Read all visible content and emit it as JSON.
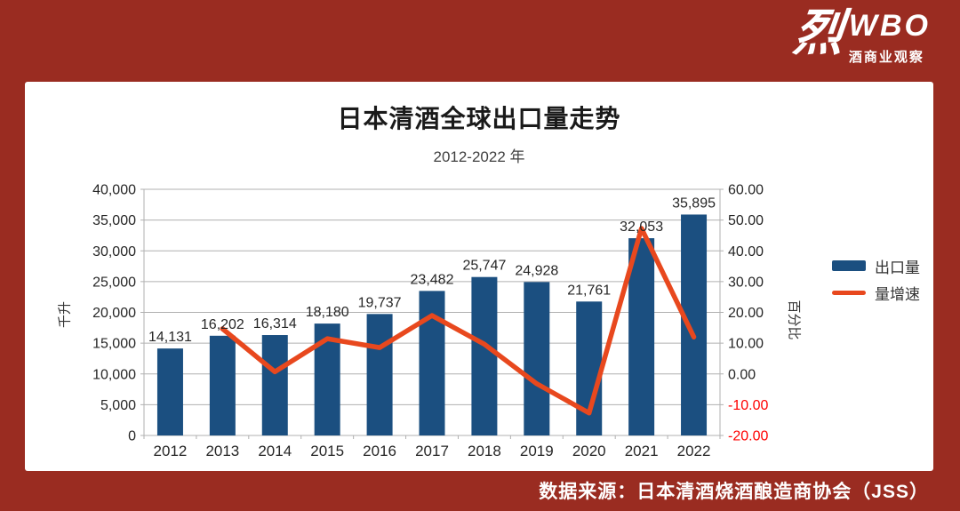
{
  "page": {
    "background_color": "#9A2C21",
    "card_color": "#FFFFFF"
  },
  "logo": {
    "glyph": "烈",
    "brand": "WBO",
    "tagline": "酒商业观察"
  },
  "footer": {
    "source_note": "数据来源：日本清酒烧酒酿造商协会（JSS）"
  },
  "chart_data": {
    "type": "combo",
    "title": "日本清酒全球出口量走势",
    "subtitle": "2012-2022 年",
    "categories": [
      "2012",
      "2013",
      "2014",
      "2015",
      "2016",
      "2017",
      "2018",
      "2019",
      "2020",
      "2021",
      "2022"
    ],
    "series": [
      {
        "name": "出口量",
        "type": "bar",
        "axis": "left",
        "color": "#1B4F80",
        "values": [
          14131,
          16202,
          16314,
          18180,
          19737,
          23482,
          25747,
          24928,
          21761,
          32053,
          35895
        ],
        "labels": [
          "14,131",
          "16,202",
          "16,314",
          "18,180",
          "19,737",
          "23,482",
          "25,747",
          "24,928",
          "21,761",
          "32,053",
          "35,895"
        ]
      },
      {
        "name": "量增速",
        "type": "line",
        "axis": "right",
        "color": "#E8481E",
        "values": [
          null,
          14.66,
          0.69,
          11.44,
          8.56,
          18.97,
          9.65,
          -3.18,
          -12.7,
          47.3,
          11.99
        ]
      }
    ],
    "left_axis": {
      "title": "千升",
      "min": 0,
      "max": 40000,
      "step": 5000,
      "ticks": [
        "40,000",
        "35,000",
        "30,000",
        "25,000",
        "20,000",
        "15,000",
        "10,000",
        "5,000",
        "0"
      ]
    },
    "right_axis": {
      "title": "百分比",
      "min": -20,
      "max": 60,
      "step": 10,
      "ticks": [
        "60.00",
        "50.00",
        "40.00",
        "30.00",
        "20.00",
        "10.00",
        "0.00",
        "-10.00",
        "-20.00"
      ],
      "negative_tick_color": "#FF0000"
    },
    "grid": true,
    "legend_position": "right",
    "gridline_color": "#B0B0B0",
    "text_color": "#262626"
  }
}
